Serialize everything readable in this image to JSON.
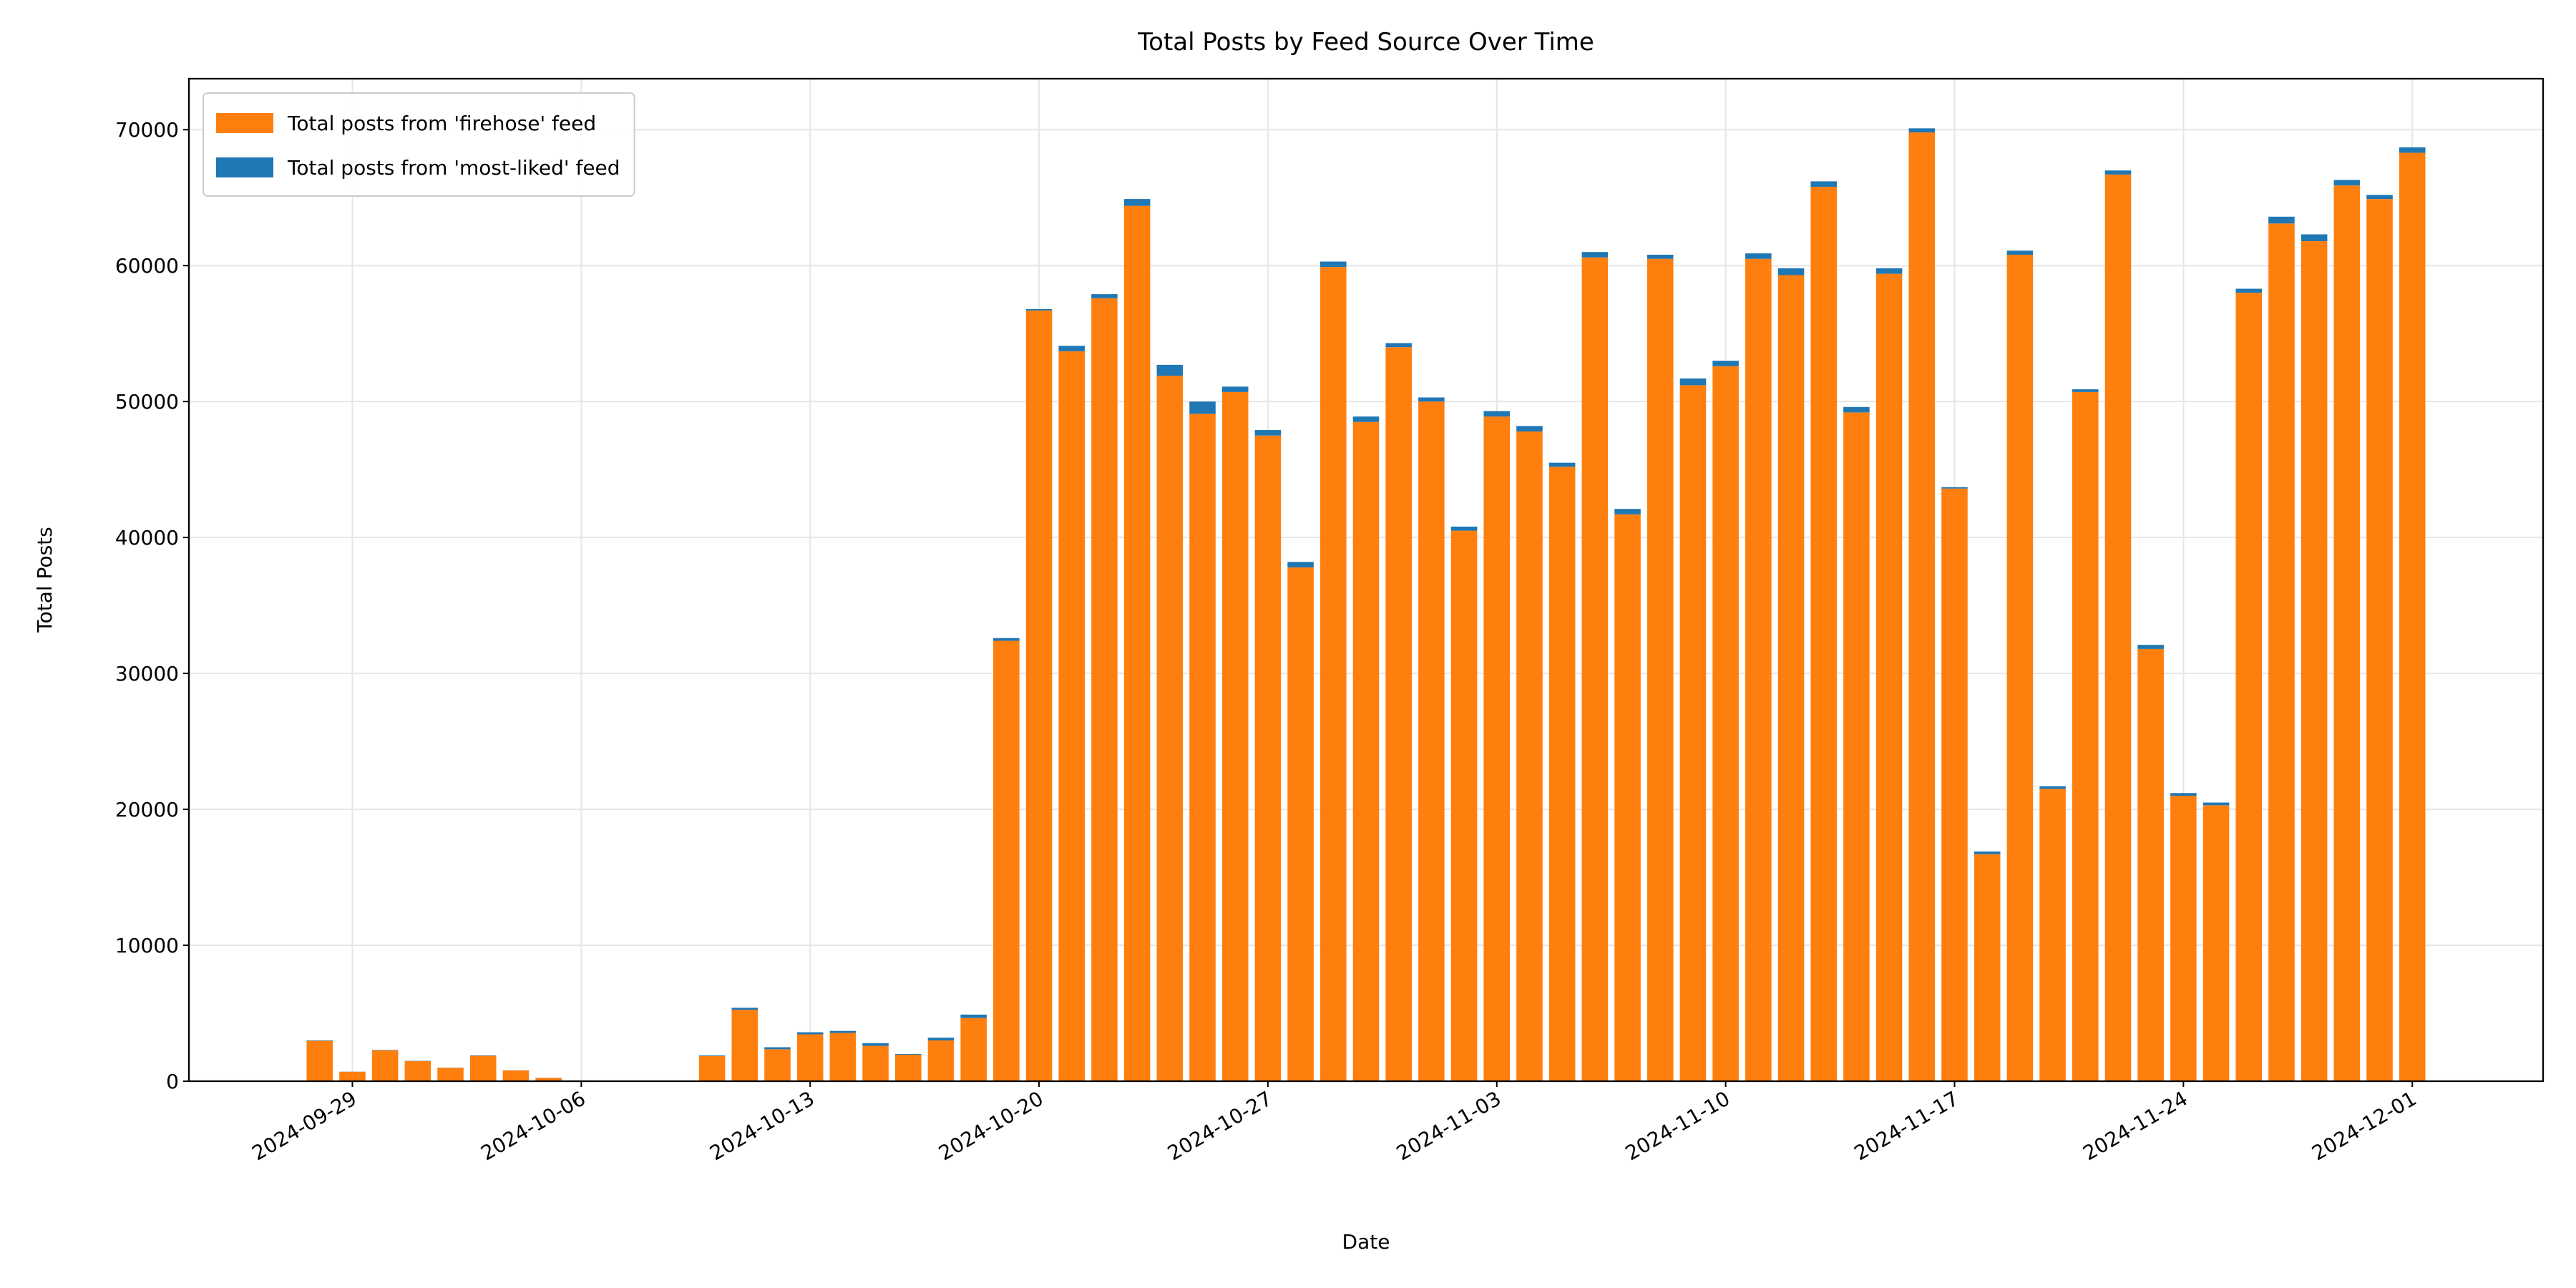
{
  "chart_data": {
    "type": "bar",
    "stacked": true,
    "title": "Total Posts by Feed Source Over Time",
    "xlabel": "Date",
    "ylabel": "Total Posts",
    "x": [
      "2024-09-28",
      "2024-09-29",
      "2024-09-30",
      "2024-10-01",
      "2024-10-02",
      "2024-10-03",
      "2024-10-04",
      "2024-10-05",
      "2024-10-06",
      "2024-10-07",
      "2024-10-10",
      "2024-10-11",
      "2024-10-12",
      "2024-10-13",
      "2024-10-14",
      "2024-10-15",
      "2024-10-16",
      "2024-10-17",
      "2024-10-18",
      "2024-10-19",
      "2024-10-20",
      "2024-10-21",
      "2024-10-22",
      "2024-10-23",
      "2024-10-24",
      "2024-10-25",
      "2024-10-26",
      "2024-10-27",
      "2024-10-28",
      "2024-10-29",
      "2024-10-30",
      "2024-10-31",
      "2024-11-01",
      "2024-11-02",
      "2024-11-03",
      "2024-11-04",
      "2024-11-05",
      "2024-11-06",
      "2024-11-07",
      "2024-11-08",
      "2024-11-09",
      "2024-11-10",
      "2024-11-11",
      "2024-11-12",
      "2024-11-13",
      "2024-11-14",
      "2024-11-15",
      "2024-11-16",
      "2024-11-17",
      "2024-11-18",
      "2024-11-19",
      "2024-11-20",
      "2024-11-21",
      "2024-11-22",
      "2024-11-23",
      "2024-11-24",
      "2024-11-25",
      "2024-11-26",
      "2024-11-27",
      "2024-11-28",
      "2024-11-29",
      "2024-11-30",
      "2024-12-01"
    ],
    "series": [
      {
        "name": "Total posts from 'firehose' feed",
        "color": "#ff7f0e",
        "values": [
          2970,
          690,
          2270,
          1480,
          990,
          1870,
          790,
          245,
          60,
          30,
          1850,
          5250,
          2350,
          3450,
          3550,
          2600,
          1950,
          3000,
          4650,
          32400,
          56700,
          53700,
          57600,
          64400,
          51900,
          49100,
          50700,
          47500,
          37800,
          59900,
          48500,
          54000,
          50000,
          40500,
          48900,
          47800,
          45200,
          60600,
          41700,
          60500,
          51200,
          52600,
          60500,
          59300,
          65800,
          49200,
          59400,
          69800,
          43600,
          16700,
          60800,
          21500,
          50700,
          66700,
          31800,
          21000,
          20300,
          58000,
          63100,
          61800,
          65900,
          64900,
          68300
        ]
      },
      {
        "name": "Total posts from 'most-liked' feed",
        "color": "#1f77b4",
        "values": [
          30,
          10,
          30,
          20,
          10,
          30,
          10,
          5,
          0,
          0,
          50,
          150,
          150,
          150,
          150,
          200,
          50,
          200,
          250,
          200,
          100,
          400,
          300,
          500,
          800,
          900,
          400,
          400,
          400,
          400,
          400,
          300,
          300,
          300,
          400,
          400,
          300,
          400,
          400,
          300,
          500,
          400,
          400,
          500,
          400,
          400,
          400,
          300,
          100,
          200,
          300,
          200,
          200,
          300,
          300,
          200,
          200,
          300,
          500,
          500,
          400,
          300,
          400
        ]
      }
    ],
    "xlim": [
      "2024-09-24",
      "2024-12-05"
    ],
    "xticks": [
      "2024-09-29",
      "2024-10-06",
      "2024-10-13",
      "2024-10-20",
      "2024-10-27",
      "2024-11-03",
      "2024-11-10",
      "2024-11-17",
      "2024-11-24",
      "2024-12-01"
    ],
    "ylim": [
      0,
      73750
    ],
    "yticks": [
      0,
      10000,
      20000,
      30000,
      40000,
      50000,
      60000,
      70000
    ],
    "grid": true,
    "legend": "upper left"
  }
}
